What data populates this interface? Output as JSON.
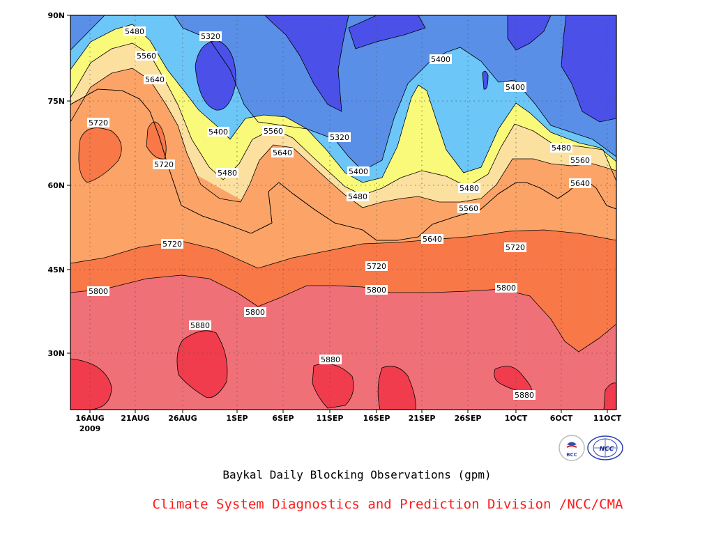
{
  "title": "Baykal Daily Blocking Observations (gpm)",
  "footer": "Climate System Diagnostics and Prediction Division /NCC/CMA",
  "logos": [
    {
      "icon": "bcc-logo",
      "text": "BCC"
    },
    {
      "icon": "ncc-logo",
      "text": "NCC"
    }
  ],
  "chart_data": {
    "type": "heatmap",
    "title": "Baykal Daily Blocking Observations (gpm)",
    "x_ticks": [
      "16AUG",
      "21AUG",
      "26AUG",
      "1SEP",
      "6SEP",
      "11SEP",
      "16SEP",
      "21SEP",
      "26SEP",
      "1OCT",
      "6OCT",
      "11OCT"
    ],
    "x_year": "2009",
    "y_ticks": [
      "30N",
      "45N",
      "60N",
      "75N",
      "90N"
    ],
    "contour_levels": [
      5320,
      5400,
      5480,
      5560,
      5640,
      5720,
      5800,
      5880
    ],
    "fill_colors": [
      "#5a8fe8",
      "#6cc6f8",
      "#fafa7a",
      "#fce0a0",
      "#fca468",
      "#f87848",
      "#f07078",
      "#f03c4c"
    ],
    "fill_low_color": "#4a50e8",
    "contour_labels": [
      "5480",
      "5320",
      "5560",
      "5640",
      "5720",
      "5720",
      "5400",
      "5480",
      "5560",
      "5640",
      "5320",
      "5400",
      "5480",
      "5400",
      "5480",
      "5560",
      "5640",
      "5400",
      "5480",
      "5560",
      "5640",
      "5720",
      "5720",
      "5720",
      "5800",
      "5800",
      "5800",
      "5800",
      "5880",
      "5880",
      "5880"
    ]
  }
}
